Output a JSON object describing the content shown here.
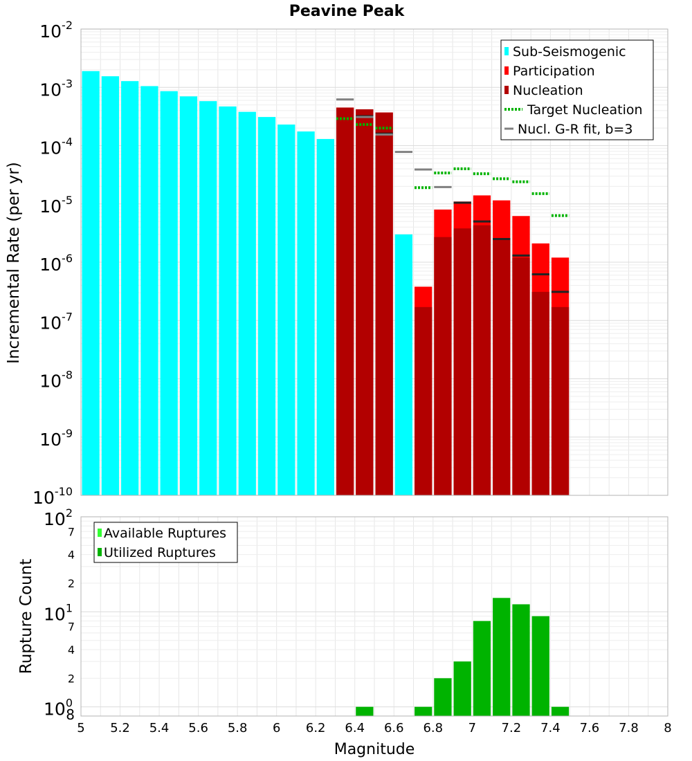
{
  "colors": {
    "sub": "#00ffff",
    "participation": "#ff0000",
    "nucleation": "#b20000",
    "target": "#00b300",
    "gr": "#808080",
    "marker": "#222222",
    "available": "#33ff33",
    "utilized": "#00b300",
    "grid": "#e6e6e6",
    "frame": "#b3b3b3"
  },
  "chart_data": [
    {
      "type": "bar",
      "title": "Peavine Peak",
      "ylabel": "Incremental Rate (per yr)",
      "xlabel": "",
      "xlim": [
        5,
        8
      ],
      "ylim": [
        1e-10,
        0.01
      ],
      "yscale": "log",
      "ytick_bases": [
        "10",
        "10",
        "10",
        "10",
        "10",
        "10",
        "10",
        "10",
        "10"
      ],
      "ytick_exps": [
        "-10",
        "-9",
        "-8",
        "-7",
        "-6",
        "-5",
        "-4",
        "-3",
        "-2"
      ],
      "bin_width": 0.1,
      "legend_position": "top-right",
      "legend": [
        {
          "label": "Sub-Seismogenic",
          "kind": "square",
          "color": "sub"
        },
        {
          "label": "Participation",
          "kind": "square",
          "color": "participation"
        },
        {
          "label": "Nucleation",
          "kind": "square",
          "color": "nucleation"
        },
        {
          "label": "Target Nucleation",
          "kind": "dotted",
          "color": "target"
        },
        {
          "label": "Nucl. G-R fit, b=3",
          "kind": "line",
          "color": "gr"
        }
      ],
      "sub_seismogenic": {
        "x": [
          5.05,
          5.15,
          5.25,
          5.35,
          5.45,
          5.55,
          5.65,
          5.75,
          5.85,
          5.95,
          6.05,
          6.15,
          6.25,
          6.65
        ],
        "values": [
          0.0019,
          0.00155,
          0.00128,
          0.00105,
          0.00086,
          0.0007,
          0.00058,
          0.00047,
          0.00038,
          0.00031,
          0.00023,
          0.000175,
          0.00013,
          3e-06
        ]
      },
      "participation": {
        "x": [
          6.35,
          6.45,
          6.55,
          6.75,
          6.85,
          6.95,
          7.05,
          7.15,
          7.25,
          7.35,
          7.45
        ],
        "values": [
          0.00045,
          0.00042,
          0.00037,
          3.8e-07,
          8e-06,
          1.1e-05,
          1.4e-05,
          1.15e-05,
          6.2e-06,
          2.1e-06,
          1.2e-06
        ]
      },
      "nucleation": {
        "x": [
          6.35,
          6.45,
          6.55,
          6.75,
          6.85,
          6.95,
          7.05,
          7.15,
          7.25,
          7.35,
          7.45
        ],
        "values": [
          0.00045,
          0.00042,
          0.00037,
          1.7e-07,
          2.7e-06,
          3.8e-06,
          4.3e-06,
          2.4e-06,
          1.2e-06,
          3.1e-07,
          1.7e-07
        ]
      },
      "bin_markers": {
        "x": [
          6.45,
          6.55,
          6.95,
          7.05,
          7.15,
          7.25,
          7.35,
          7.45
        ],
        "values": [
          0.00032,
          0.00016,
          1.05e-05,
          5e-06,
          2.5e-06,
          1.3e-06,
          6.2e-07,
          3.1e-07
        ]
      },
      "target_nucleation": {
        "x": [
          6.35,
          6.45,
          6.55,
          6.75,
          6.85,
          6.95,
          7.05,
          7.15,
          7.25,
          7.35,
          7.45
        ],
        "values": [
          0.00029,
          0.00023,
          0.0002,
          1.9e-05,
          3.4e-05,
          4e-05,
          3.3e-05,
          2.7e-05,
          2.4e-05,
          1.5e-05,
          6.3e-06
        ]
      },
      "gr_fit": {
        "x": [
          6.35,
          6.45,
          6.55,
          6.65,
          6.75,
          6.85
        ],
        "values": [
          0.00062,
          0.00031,
          0.000155,
          7.8e-05,
          3.9e-05,
          1.95e-05
        ]
      }
    },
    {
      "type": "bar",
      "title": "",
      "xlabel": "Magnitude",
      "ylabel": "Rupture Count",
      "xlim": [
        5,
        8
      ],
      "ylim": [
        0.8,
        100
      ],
      "yscale": "log",
      "xticks": [
        "5",
        "5.2",
        "5.4",
        "5.6",
        "5.8",
        "6",
        "6.2",
        "6.4",
        "6.6",
        "6.8",
        "7",
        "7.2",
        "7.4",
        "7.6",
        "7.8",
        "8"
      ],
      "ytick_bases": [
        "10",
        "10",
        "10"
      ],
      "ytick_exps": [
        "0",
        "1",
        "2"
      ],
      "minor_labels": [
        "8",
        "2",
        "4",
        "7",
        "2",
        "4",
        "7"
      ],
      "legend_position": "top-left",
      "legend": [
        {
          "label": "Available Ruptures",
          "kind": "square",
          "color": "available"
        },
        {
          "label": "Utilized Ruptures",
          "kind": "square",
          "color": "utilized"
        }
      ],
      "utilized": {
        "x": [
          6.45,
          6.75,
          6.85,
          6.95,
          7.05,
          7.15,
          7.25,
          7.35,
          7.45
        ],
        "values": [
          1,
          1,
          2,
          3,
          8,
          14,
          12,
          9,
          1
        ]
      }
    }
  ]
}
